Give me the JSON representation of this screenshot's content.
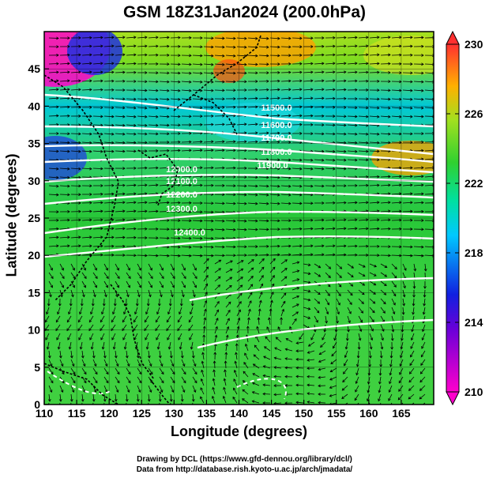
{
  "title": "GSM 18Z31Jan2024 (200.0hPa)",
  "xlabel": "Longitude (degrees)",
  "ylabel": "Latitude  (degrees)",
  "credit_line1": "Drawing by DCL (https://www.gfd-dennou.org/library/dcl/)",
  "credit_line2": "Data from http://database.rish.kyoto-u.ac.jp/arch/jmadata/",
  "x_ticks": [
    "110",
    "115",
    "120",
    "125",
    "130",
    "135",
    "140",
    "145",
    "150",
    "155",
    "160",
    "165"
  ],
  "y_ticks": [
    "0",
    "5",
    "10",
    "15",
    "20",
    "25",
    "30",
    "35",
    "40",
    "45"
  ],
  "colorbar_ticks": [
    "210",
    "214",
    "218",
    "222",
    "226",
    "230"
  ],
  "contour_labels": [
    "11500.0",
    "11600.0",
    "11700.0",
    "11800.0",
    "11900.0",
    "12000.0",
    "12100.0",
    "12200.0",
    "12300.0",
    "12400.0"
  ],
  "chart_data": {
    "type": "heatmap",
    "variable_range": [
      210,
      230
    ],
    "xlim": [
      110,
      170
    ],
    "ylim": [
      0,
      50
    ],
    "colormap": [
      "#ff00cc",
      "#2020e0",
      "#00d0ff",
      "#30d030",
      "#a0e020",
      "#ffa000",
      "#ff3030"
    ]
  }
}
